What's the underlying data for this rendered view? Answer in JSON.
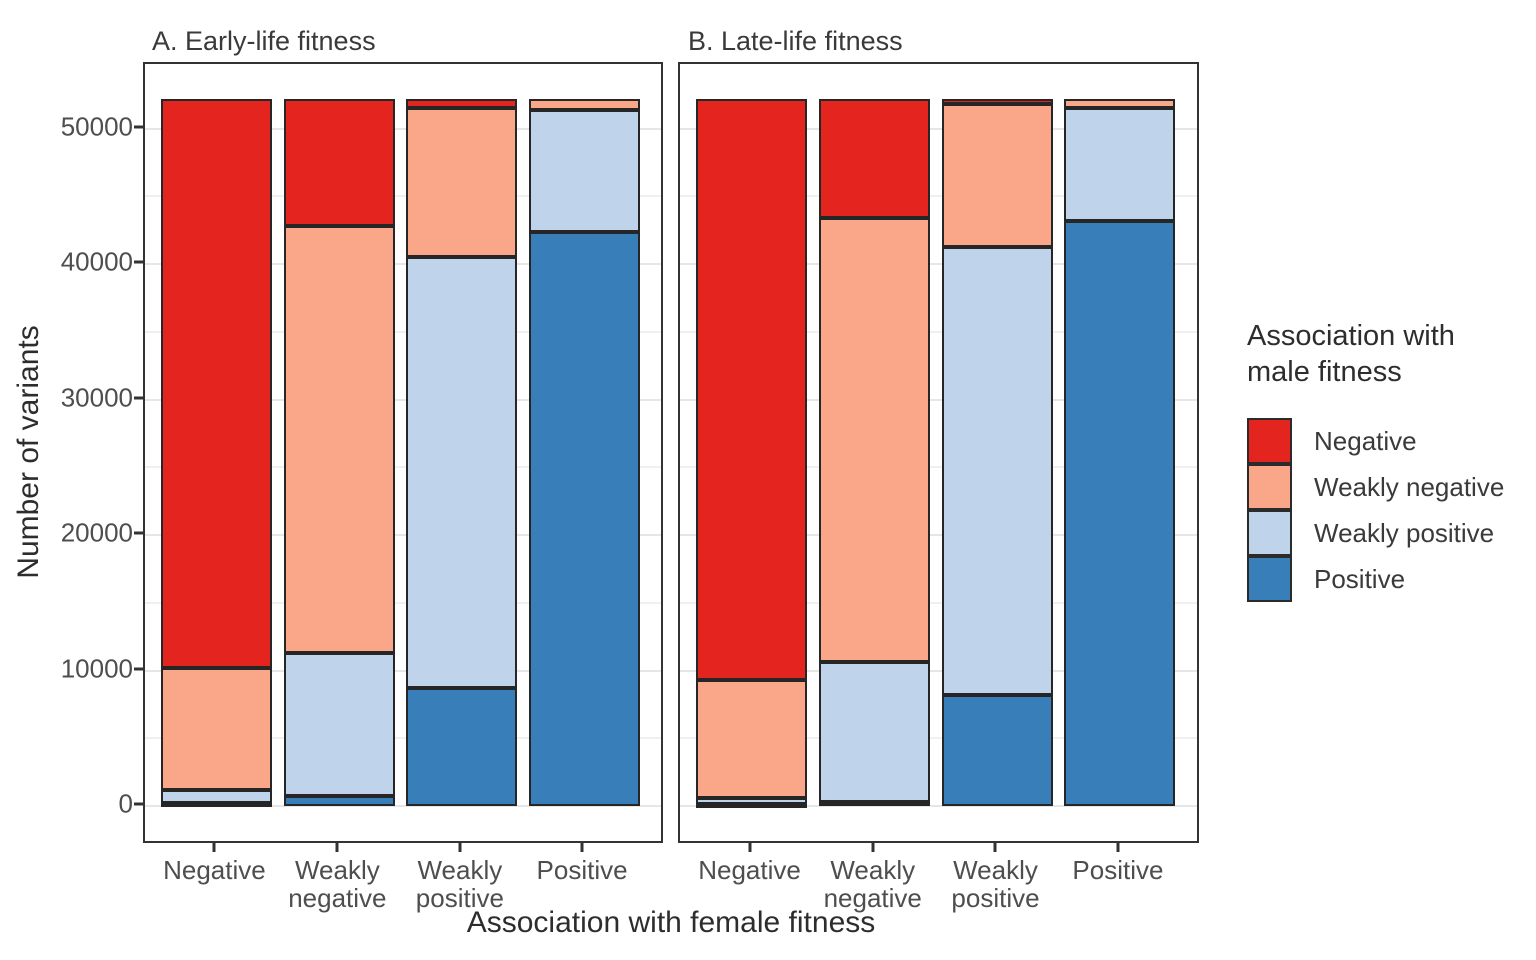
{
  "figure": {
    "xlabel": "Association with female fitness",
    "ylabel": "Number of variants",
    "legend_title_line1": "Association with",
    "legend_title_line2": "male fitness"
  },
  "chart_data": {
    "type": "bar",
    "stacked": true,
    "grid": "horizontal gridlines every 5000, minor between majors",
    "legend_position": "right",
    "ylabel": "Number of variants",
    "xlabel": "Association with female fitness",
    "ylim": [
      0,
      54800
    ],
    "yticks": [
      0,
      10000,
      20000,
      30000,
      40000,
      50000
    ],
    "ytick_labels": [
      "0",
      "10000",
      "20000",
      "30000",
      "40000",
      "50000"
    ],
    "categories": [
      "Negative",
      "Weakly negative",
      "Weakly positive",
      "Positive"
    ],
    "category_display": [
      [
        "Negative"
      ],
      [
        "Weakly",
        "negative"
      ],
      [
        "Weakly",
        "positive"
      ],
      [
        "Positive"
      ]
    ],
    "bar_total": 52200,
    "legend": [
      "Negative",
      "Weakly negative",
      "Weakly positive",
      "Positive"
    ],
    "colors": {
      "Negative": "#e3241f",
      "Weakly negative": "#f9a689",
      "Weakly positive": "#bfd4eb",
      "Positive": "#387eb8"
    },
    "panels": [
      {
        "label": "A. Early-life fitness",
        "series": [
          {
            "name": "Negative",
            "color": "#e3241f",
            "values": [
              42000,
              9400,
              650,
              0
            ]
          },
          {
            "name": "Weakly negative",
            "color": "#f9a689",
            "values": [
              9050,
              31500,
              11050,
              850
            ]
          },
          {
            "name": "Weakly positive",
            "color": "#bfd4eb",
            "values": [
              900,
              10540,
              31800,
              8950
            ]
          },
          {
            "name": "Positive",
            "color": "#387eb8",
            "values": [
              250,
              760,
              8700,
              42400
            ]
          }
        ]
      },
      {
        "label": "B. Late-life fitness",
        "series": [
          {
            "name": "Negative",
            "color": "#e3241f",
            "values": [
              42900,
              8800,
              350,
              0
            ]
          },
          {
            "name": "Weakly negative",
            "color": "#f9a689",
            "values": [
              8690,
              32800,
              10550,
              700
            ]
          },
          {
            "name": "Weakly positive",
            "color": "#bfd4eb",
            "values": [
              430,
              10280,
              33100,
              8300
            ]
          },
          {
            "name": "Positive",
            "color": "#387eb8",
            "values": [
              180,
              320,
              8200,
              43200
            ]
          }
        ]
      }
    ]
  }
}
